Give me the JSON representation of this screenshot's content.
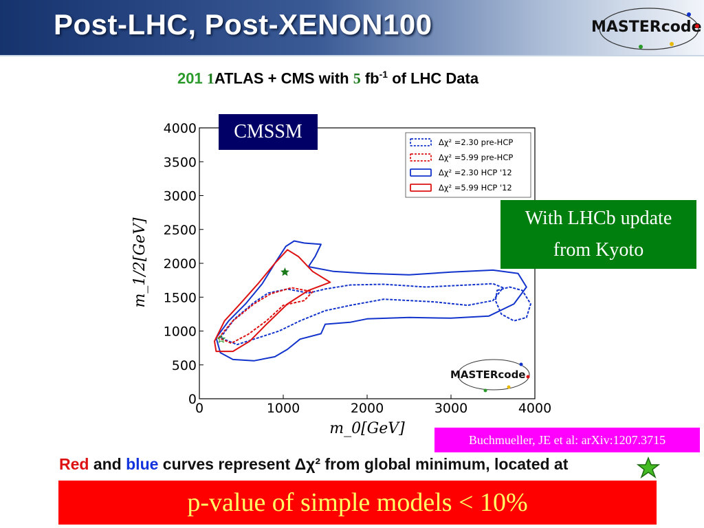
{
  "header": {
    "title": "Post-LHC, Post-XENON100",
    "logo_text": "MASTERcode"
  },
  "subtitle": {
    "year_prefix": "201",
    "year_digit": "1",
    "main": "ATLAS + CMS with",
    "lumi_digit": "5",
    "unit": "fb",
    "unit_exp": "-1",
    "suffix": "of LHC Data"
  },
  "boxes": {
    "model": "CMSSM",
    "lhcb_line1": "With LHCb update",
    "lhcb_line2": "from Kyoto",
    "citation": "Buchmueller, JE et al: arXiv:1207.3715"
  },
  "caption": {
    "red": "Red",
    "and": "and",
    "blue": "blue",
    "rest": "curves represent Δχ² from global minimum, located at"
  },
  "banner": "p-value of simple models < 10%",
  "colors": {
    "header_dark": "#16336e",
    "blue_curve": "#1133cc",
    "red_curve": "#dd1111",
    "model_box": "#000066",
    "lhcb_box": "#007f0e",
    "citation_box": "#ff00ff",
    "banner": "#ff0000",
    "banner_text": "#ffff66"
  },
  "chart_data": {
    "type": "contour",
    "xlabel": "m_0[GeV]",
    "ylabel": "m_1/2[GeV]",
    "xlim": [
      0,
      4000
    ],
    "ylim": [
      0,
      4000
    ],
    "xticks": [
      0,
      1000,
      2000,
      3000,
      4000
    ],
    "yticks": [
      0,
      500,
      1000,
      1500,
      2000,
      2500,
      3000,
      3500,
      4000
    ],
    "legend_position": "top-right",
    "inset_logo_text": "MASTERcode",
    "series": [
      {
        "name": "Δχ² =2.30 pre-HCP",
        "color": "#1133cc",
        "dashed": true,
        "contours": [
          [
            [
              250,
              900
            ],
            [
              420,
              1180
            ],
            [
              650,
              1420
            ],
            [
              820,
              1560
            ],
            [
              1050,
              1620
            ],
            [
              1300,
              1560
            ],
            [
              1500,
              1620
            ],
            [
              1800,
              1680
            ],
            [
              2200,
              1690
            ],
            [
              2700,
              1650
            ],
            [
              3200,
              1680
            ],
            [
              3500,
              1700
            ],
            [
              3620,
              1640
            ],
            [
              3500,
              1450
            ],
            [
              3200,
              1380
            ],
            [
              2800,
              1430
            ],
            [
              2200,
              1470
            ],
            [
              1800,
              1380
            ],
            [
              1500,
              1300
            ],
            [
              1200,
              1150
            ],
            [
              950,
              1000
            ],
            [
              700,
              900
            ],
            [
              450,
              800
            ],
            [
              250,
              900
            ]
          ],
          [
            [
              3550,
              1600
            ],
            [
              3700,
              1650
            ],
            [
              3850,
              1600
            ],
            [
              3950,
              1400
            ],
            [
              3900,
              1200
            ],
            [
              3750,
              1150
            ],
            [
              3600,
              1250
            ],
            [
              3530,
              1450
            ],
            [
              3550,
              1600
            ]
          ]
        ]
      },
      {
        "name": "Δχ² =5.99 pre-HCP",
        "color": "#dd1111",
        "dashed": true,
        "contours": [
          [
            [
              230,
              900
            ],
            [
              400,
              1150
            ],
            [
              650,
              1400
            ],
            [
              850,
              1550
            ],
            [
              1100,
              1640
            ],
            [
              1350,
              1580
            ],
            [
              1250,
              1450
            ],
            [
              1000,
              1380
            ],
            [
              800,
              1150
            ],
            [
              580,
              950
            ],
            [
              380,
              820
            ],
            [
              230,
              900
            ]
          ]
        ]
      },
      {
        "name": "Δχ² =2.30 HCP '12",
        "color": "#1133cc",
        "dashed": false,
        "contours": [
          [
            [
              200,
              900
            ],
            [
              350,
              1150
            ],
            [
              550,
              1400
            ],
            [
              750,
              1700
            ],
            [
              900,
              2000
            ],
            [
              1030,
              2250
            ],
            [
              1130,
              2330
            ],
            [
              1250,
              2300
            ],
            [
              1450,
              2280
            ],
            [
              1380,
              2100
            ],
            [
              1300,
              1950
            ],
            [
              1600,
              1880
            ],
            [
              2000,
              1850
            ],
            [
              2500,
              1830
            ],
            [
              3000,
              1870
            ],
            [
              3500,
              1900
            ],
            [
              3800,
              1850
            ],
            [
              3900,
              1650
            ],
            [
              3750,
              1400
            ],
            [
              3450,
              1220
            ],
            [
              3000,
              1190
            ],
            [
              2500,
              1200
            ],
            [
              2000,
              1180
            ],
            [
              1800,
              1130
            ],
            [
              1500,
              1100
            ],
            [
              1450,
              960
            ],
            [
              1200,
              880
            ],
            [
              1050,
              730
            ],
            [
              900,
              620
            ],
            [
              650,
              560
            ],
            [
              400,
              580
            ],
            [
              250,
              680
            ],
            [
              200,
              900
            ]
          ]
        ]
      },
      {
        "name": "Δχ² =5.99 HCP '12",
        "color": "#dd1111",
        "dashed": false,
        "contours": [
          [
            [
              180,
              850
            ],
            [
              300,
              1150
            ],
            [
              500,
              1420
            ],
            [
              700,
              1700
            ],
            [
              900,
              2000
            ],
            [
              1050,
              2200
            ],
            [
              1180,
              2100
            ],
            [
              1350,
              1880
            ],
            [
              1560,
              1720
            ],
            [
              1300,
              1600
            ],
            [
              1050,
              1400
            ],
            [
              800,
              1100
            ],
            [
              600,
              850
            ],
            [
              400,
              700
            ],
            [
              200,
              700
            ],
            [
              180,
              850
            ]
          ]
        ]
      }
    ],
    "markers": [
      {
        "label": "pre-HCP best fit",
        "x": 1020,
        "y": 1870,
        "style": "filled-star",
        "color": "#1a7a1a"
      },
      {
        "label": "HCP best fit",
        "x": 260,
        "y": 880,
        "style": "open-star",
        "color": "#2a9a2a"
      }
    ]
  }
}
